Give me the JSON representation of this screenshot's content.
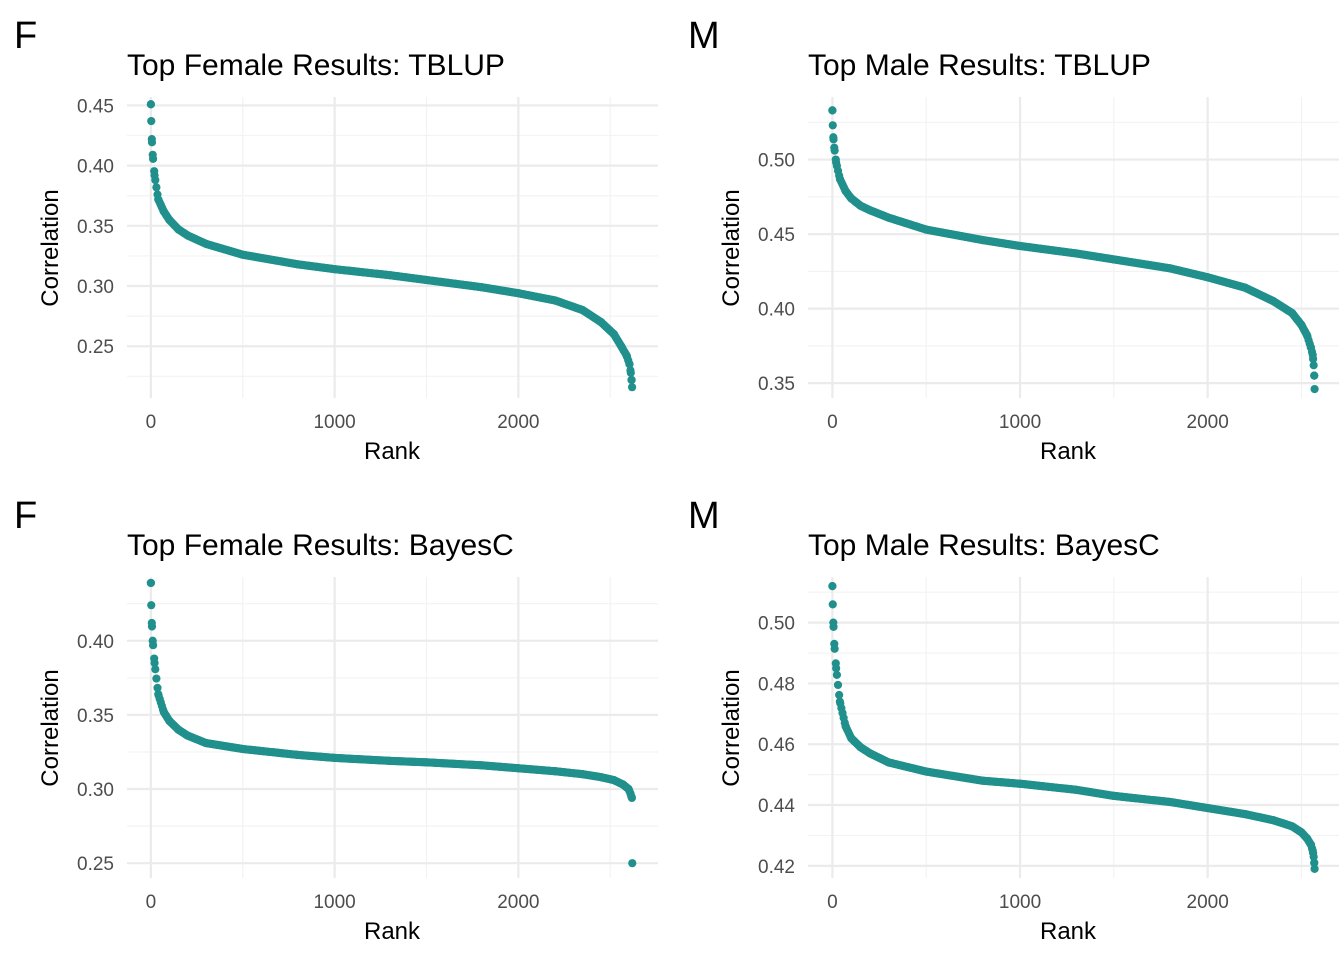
{
  "colors": {
    "point": "#21908C",
    "grid_major": "#ebebeb",
    "grid_minor": "#f3f3f3"
  },
  "chart_data": [
    {
      "type": "scatter",
      "tag": "F",
      "title": "Top Female Results: TBLUP",
      "xlabel": "Rank",
      "ylabel": "Correlation",
      "xlim": [
        -130,
        2760
      ],
      "ylim": [
        0.207,
        0.457
      ],
      "xticks": [
        0,
        1000,
        2000
      ],
      "xtick_labels": [
        "0",
        "1000",
        "2000"
      ],
      "yticks": [
        0.25,
        0.3,
        0.35,
        0.4,
        0.45
      ],
      "ytick_labels": [
        "0.25",
        "0.30",
        "0.35",
        "0.40",
        "0.45"
      ],
      "n_points": 2620,
      "x": [
        0,
        2,
        5,
        10,
        20,
        40,
        70,
        100,
        150,
        200,
        300,
        500,
        800,
        1000,
        1300,
        1500,
        1800,
        2000,
        2200,
        2350,
        2450,
        2520,
        2560,
        2590,
        2605,
        2612,
        2616,
        2619
      ],
      "y": [
        0.451,
        0.437,
        0.422,
        0.409,
        0.392,
        0.372,
        0.362,
        0.355,
        0.347,
        0.342,
        0.335,
        0.326,
        0.318,
        0.314,
        0.309,
        0.305,
        0.299,
        0.294,
        0.288,
        0.28,
        0.27,
        0.26,
        0.25,
        0.242,
        0.235,
        0.228,
        0.222,
        0.216
      ],
      "grid": true
    },
    {
      "type": "scatter",
      "tag": "M",
      "title": "Top Male Results: TBLUP",
      "xlabel": "Rank",
      "ylabel": "Correlation",
      "xlim": [
        -130,
        2700
      ],
      "ylim": [
        0.34,
        0.542
      ],
      "xticks": [
        0,
        1000,
        2000
      ],
      "xtick_labels": [
        "0",
        "1000",
        "2000"
      ],
      "yticks": [
        0.35,
        0.4,
        0.45,
        0.5
      ],
      "ytick_labels": [
        "0.35",
        "0.40",
        "0.45",
        "0.50"
      ],
      "n_points": 2570,
      "x": [
        0,
        2,
        5,
        10,
        20,
        40,
        70,
        100,
        150,
        200,
        300,
        500,
        800,
        1000,
        1300,
        1500,
        1800,
        2000,
        2200,
        2350,
        2450,
        2500,
        2530,
        2550,
        2560,
        2565,
        2568,
        2570
      ],
      "y": [
        0.533,
        0.523,
        0.515,
        0.508,
        0.498,
        0.487,
        0.479,
        0.474,
        0.469,
        0.466,
        0.461,
        0.453,
        0.446,
        0.442,
        0.437,
        0.433,
        0.427,
        0.421,
        0.414,
        0.405,
        0.397,
        0.389,
        0.382,
        0.374,
        0.369,
        0.362,
        0.355,
        0.346
      ],
      "grid": true
    },
    {
      "type": "scatter",
      "tag": "F",
      "title": "Top Female Results: BayesC",
      "xlabel": "Rank",
      "ylabel": "Correlation",
      "xlim": [
        -130,
        2760
      ],
      "ylim": [
        0.24,
        0.443
      ],
      "xticks": [
        0,
        1000,
        2000
      ],
      "xtick_labels": [
        "0",
        "1000",
        "2000"
      ],
      "yticks": [
        0.25,
        0.3,
        0.35,
        0.4
      ],
      "ytick_labels": [
        "0.25",
        "0.30",
        "0.35",
        "0.40"
      ],
      "n_points": 2620,
      "x": [
        0,
        2,
        5,
        10,
        20,
        40,
        70,
        100,
        150,
        200,
        300,
        500,
        800,
        1000,
        1300,
        1500,
        1800,
        2000,
        2200,
        2350,
        2450,
        2520,
        2570,
        2600,
        2610,
        2615,
        2618,
        2620
      ],
      "y": [
        0.439,
        0.424,
        0.412,
        0.4,
        0.385,
        0.364,
        0.352,
        0.346,
        0.34,
        0.336,
        0.331,
        0.327,
        0.323,
        0.321,
        0.319,
        0.318,
        0.316,
        0.314,
        0.312,
        0.31,
        0.308,
        0.306,
        0.303,
        0.3,
        0.297,
        0.295,
        0.294,
        0.25
      ],
      "grid": true
    },
    {
      "type": "scatter",
      "tag": "M",
      "title": "Top Male Results: BayesC",
      "xlabel": "Rank",
      "ylabel": "Correlation",
      "xlim": [
        -130,
        2700
      ],
      "ylim": [
        0.416,
        0.515
      ],
      "xticks": [
        0,
        1000,
        2000
      ],
      "xtick_labels": [
        "0",
        "1000",
        "2000"
      ],
      "yticks": [
        0.42,
        0.44,
        0.46,
        0.48,
        0.5
      ],
      "ytick_labels": [
        "0.42",
        "0.44",
        "0.46",
        "0.48",
        "0.50"
      ],
      "n_points": 2570,
      "x": [
        0,
        2,
        5,
        10,
        20,
        40,
        70,
        100,
        150,
        200,
        300,
        500,
        800,
        1000,
        1300,
        1500,
        1800,
        2000,
        2200,
        2350,
        2450,
        2500,
        2530,
        2550,
        2560,
        2565,
        2568,
        2570
      ],
      "y": [
        0.512,
        0.506,
        0.5,
        0.493,
        0.485,
        0.474,
        0.466,
        0.462,
        0.459,
        0.457,
        0.454,
        0.451,
        0.448,
        0.447,
        0.445,
        0.443,
        0.441,
        0.439,
        0.437,
        0.435,
        0.433,
        0.431,
        0.429,
        0.427,
        0.425,
        0.423,
        0.421,
        0.419
      ],
      "grid": true
    }
  ]
}
